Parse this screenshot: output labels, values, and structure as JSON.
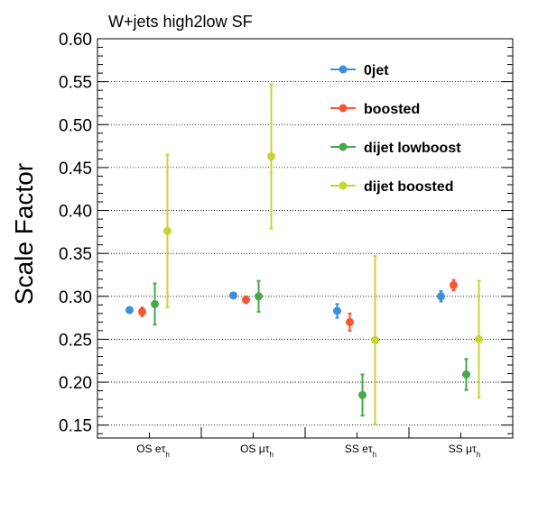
{
  "chart_data": {
    "type": "scatter",
    "title": "W+jets high2low SF",
    "ylabel": "Scale Factor",
    "xlabel": "",
    "ylim": [
      0.135,
      0.6
    ],
    "yticks": [
      0.15,
      0.2,
      0.25,
      0.3,
      0.35,
      0.4,
      0.45,
      0.5,
      0.55,
      0.6
    ],
    "grid": "horizontal",
    "legend_position": "top-right",
    "categories": [
      {
        "main": "OS e",
        "tau": "τ",
        "sub": "h"
      },
      {
        "main": "OS μ",
        "tau": "τ",
        "sub": "h"
      },
      {
        "main": "SS e",
        "tau": "τ",
        "sub": "h"
      },
      {
        "main": "SS μ",
        "tau": "τ",
        "sub": "h"
      }
    ],
    "series": [
      {
        "name": "0jet",
        "color": "#3a8fdc",
        "values": [
          0.284,
          0.301,
          0.283,
          0.3
        ],
        "errors": [
          0.003,
          0.003,
          0.008,
          0.006
        ]
      },
      {
        "name": "boosted",
        "color": "#f4572f",
        "values": [
          0.282,
          0.296,
          0.27,
          0.313
        ],
        "errors": [
          0.005,
          0.004,
          0.01,
          0.006
        ]
      },
      {
        "name": "dijet lowboost",
        "color": "#45a84a",
        "values": [
          0.291,
          0.3,
          0.185,
          0.209
        ],
        "errors": [
          0.024,
          0.018,
          0.024,
          0.018
        ]
      },
      {
        "name": "dijet boosted",
        "color": "#c5d634",
        "values": [
          0.376,
          0.463,
          0.249,
          0.25
        ],
        "errors": [
          0.089,
          0.084,
          0.098,
          0.068
        ]
      }
    ]
  }
}
